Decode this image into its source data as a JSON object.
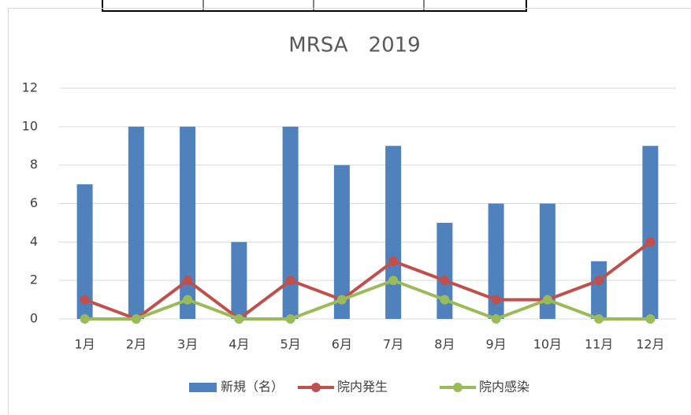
{
  "chart_data": {
    "type": "combo",
    "title": "MRSA　2019",
    "categories": [
      "1月",
      "2月",
      "3月",
      "4月",
      "5月",
      "6月",
      "7月",
      "8月",
      "9月",
      "10月",
      "11月",
      "12月"
    ],
    "series": [
      {
        "name": "新規（名）",
        "type": "bar",
        "color": "#4f81bd",
        "values": [
          7,
          10,
          10,
          4,
          10,
          8,
          9,
          5,
          6,
          6,
          3,
          9
        ]
      },
      {
        "name": "院内発生",
        "type": "line",
        "color": "#c0504d",
        "values": [
          1,
          0,
          2,
          0,
          2,
          1,
          3,
          2,
          1,
          1,
          2,
          4
        ]
      },
      {
        "name": "院内感染",
        "type": "line",
        "color": "#9bbb59",
        "values": [
          0,
          0,
          1,
          0,
          0,
          1,
          2,
          1,
          0,
          1,
          0,
          0
        ]
      }
    ],
    "ylim": [
      0,
      12
    ],
    "yticks": [
      0,
      2,
      4,
      6,
      8,
      10,
      12
    ],
    "grid": true,
    "legend": "bottom"
  }
}
